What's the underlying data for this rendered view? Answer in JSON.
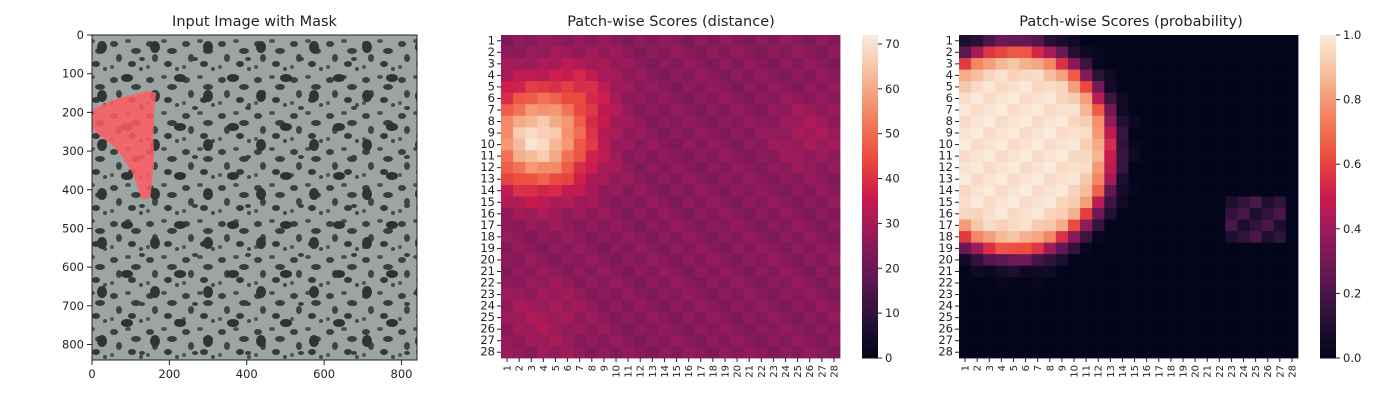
{
  "figure": {
    "panels": [
      {
        "title": "Input Image with Mask"
      },
      {
        "title": "Patch-wise Scores (distance)"
      },
      {
        "title": "Patch-wise Scores (probability)"
      }
    ]
  },
  "chart_data": [
    {
      "type": "image",
      "title": "Input Image with Mask",
      "xlabel": "",
      "ylabel": "",
      "xlim": [
        0,
        840
      ],
      "ylim": [
        840,
        0
      ],
      "xticks": [
        0,
        200,
        400,
        600,
        800
      ],
      "yticks": [
        0,
        100,
        200,
        300,
        400,
        500,
        600,
        700,
        800
      ],
      "description_colors": {
        "background": "#9aa29f",
        "dark_spots": "#3a3d3f",
        "mask": "#ff5a64"
      },
      "mask_polygon": [
        [
          5,
          190
        ],
        [
          65,
          165
        ],
        [
          145,
          145
        ],
        [
          165,
          150
        ],
        [
          160,
          195
        ],
        [
          158,
          270
        ],
        [
          160,
          330
        ],
        [
          150,
          420
        ],
        [
          130,
          425
        ],
        [
          105,
          355
        ],
        [
          75,
          310
        ],
        [
          55,
          285
        ],
        [
          40,
          275
        ],
        [
          15,
          255
        ],
        [
          0,
          240
        ]
      ]
    },
    {
      "type": "heatmap",
      "title": "Patch-wise Scores (distance)",
      "xlabel": "",
      "ylabel": "",
      "x": [
        "1",
        "2",
        "3",
        "4",
        "5",
        "6",
        "7",
        "8",
        "9",
        "10",
        "11",
        "12",
        "13",
        "14",
        "15",
        "16",
        "17",
        "18",
        "19",
        "20",
        "21",
        "22",
        "23",
        "24",
        "25",
        "26",
        "27",
        "28"
      ],
      "y": [
        "1",
        "2",
        "3",
        "4",
        "5",
        "6",
        "7",
        "8",
        "9",
        "10",
        "11",
        "12",
        "13",
        "14",
        "15",
        "16",
        "17",
        "18",
        "19",
        "20",
        "21",
        "22",
        "23",
        "24",
        "25",
        "26",
        "27",
        "28"
      ],
      "colorbar": {
        "min": 0,
        "max": 72,
        "ticks": [
          0,
          10,
          20,
          30,
          40,
          50,
          60,
          70
        ]
      },
      "base": 25,
      "hotspots": [
        {
          "row": 9.5,
          "col": 3.5,
          "peak": 45,
          "sigma": 3.0
        },
        {
          "row": 5.0,
          "col": 7.5,
          "peak": 8,
          "sigma": 2.0
        },
        {
          "row": 9.0,
          "col": 26.0,
          "peak": 5,
          "sigma": 2.0
        },
        {
          "row": 25.0,
          "col": 4.0,
          "peak": 5,
          "sigma": 2.5
        }
      ]
    },
    {
      "type": "heatmap",
      "title": "Patch-wise Scores (probability)",
      "xlabel": "",
      "ylabel": "",
      "x": [
        "1",
        "2",
        "3",
        "4",
        "5",
        "6",
        "7",
        "8",
        "9",
        "10",
        "11",
        "12",
        "13",
        "14",
        "15",
        "16",
        "17",
        "18",
        "19",
        "20",
        "21",
        "22",
        "23",
        "24",
        "25",
        "26",
        "27",
        "28"
      ],
      "y": [
        "1",
        "2",
        "3",
        "4",
        "5",
        "6",
        "7",
        "8",
        "9",
        "10",
        "11",
        "12",
        "13",
        "14",
        "15",
        "16",
        "17",
        "18",
        "19",
        "20",
        "21",
        "22",
        "23",
        "24",
        "25",
        "26",
        "27",
        "28"
      ],
      "colorbar": {
        "min": 0.0,
        "max": 1.0,
        "ticks": [
          "0.0",
          "0.2",
          "0.4",
          "0.6",
          "0.8",
          "1.0"
        ]
      },
      "region": {
        "center_row": 10.5,
        "center_col": 5.0,
        "radius": 8.5
      }
    }
  ]
}
